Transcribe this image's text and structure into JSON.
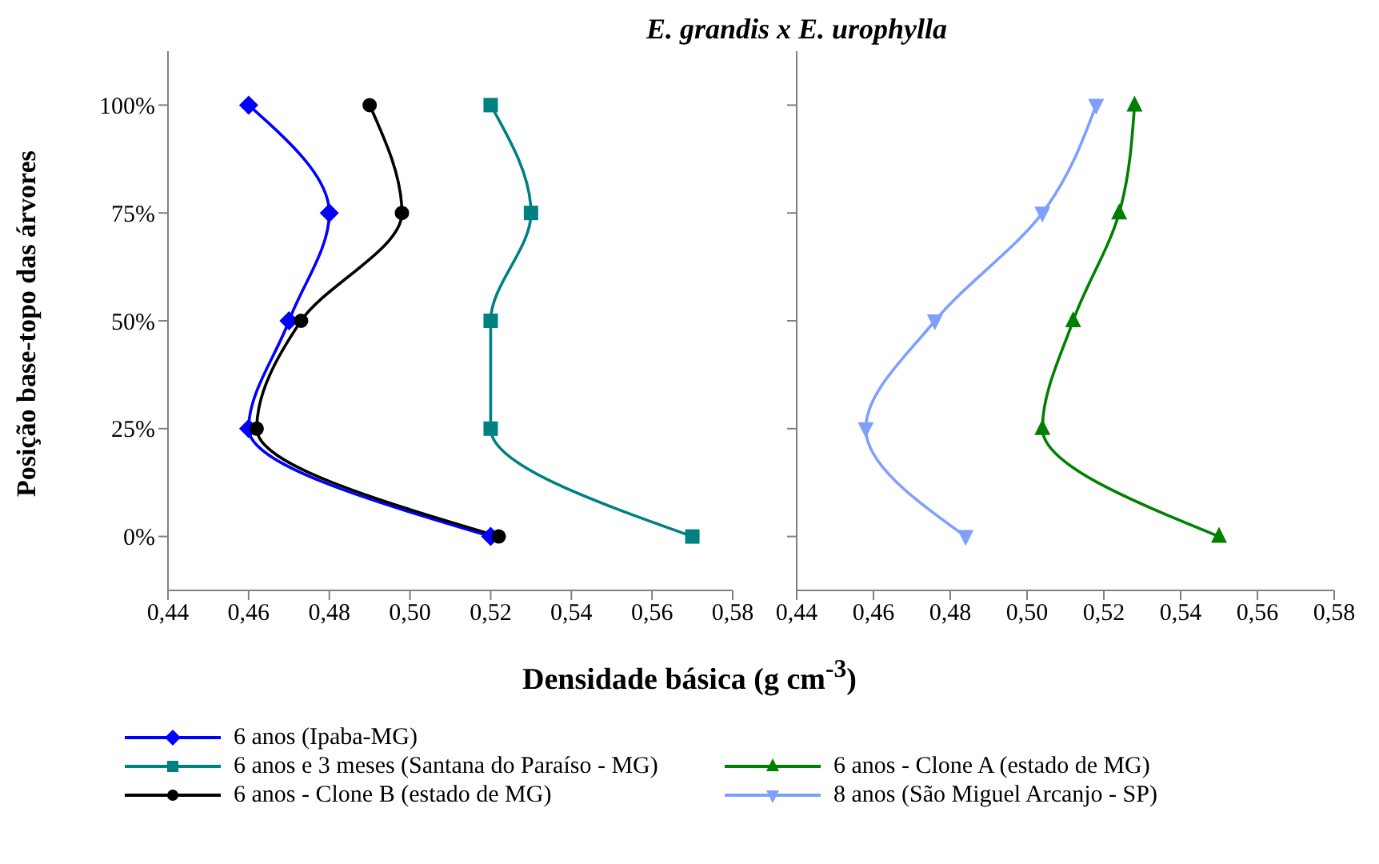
{
  "chart_data": [
    {
      "type": "line",
      "title": "E. grandis x E. urophylla",
      "xlabel": "Densidade básica (g cm$^{-3}$)",
      "ylabel": "Posição base-topo das árvores",
      "xlim": [
        0.44,
        0.58
      ],
      "xticks": [
        {
          "value": 0.44,
          "label": "0,44"
        },
        {
          "value": 0.46,
          "label": "0,46"
        },
        {
          "value": 0.48,
          "label": "0,48"
        },
        {
          "value": 0.5,
          "label": "0,50"
        },
        {
          "value": 0.52,
          "label": "0,52"
        },
        {
          "value": 0.54,
          "label": "0,54"
        },
        {
          "value": 0.56,
          "label": "0,56"
        },
        {
          "value": 0.58,
          "label": "0,58"
        }
      ],
      "ylim": [
        -12.5,
        112.5
      ],
      "yticks": [
        {
          "value": 0,
          "label": "0%"
        },
        {
          "value": 25,
          "label": "25%"
        },
        {
          "value": 50,
          "label": "50%"
        },
        {
          "value": 75,
          "label": "75%"
        },
        {
          "value": 100,
          "label": "100%"
        }
      ],
      "legend": "bottom",
      "grid": false,
      "series": [
        {
          "name": "6 anos (Ipaba-MG)",
          "color": "#0000ff",
          "marker": "diamond",
          "x": [
            0.46,
            0.48,
            0.47,
            0.46,
            0.52
          ],
          "values": [
            100,
            75,
            50,
            25,
            0
          ]
        },
        {
          "name": "6 anos e 3 meses (Santana do Paraíso - MG)",
          "color": "#008080",
          "marker": "square",
          "x": [
            0.52,
            0.53,
            0.52,
            0.52,
            0.57
          ],
          "values": [
            100,
            75,
            50,
            25,
            0
          ]
        },
        {
          "name": "6 anos - Clone B (estado de MG)",
          "color": "#000000",
          "marker": "circle",
          "x": [
            0.49,
            0.498,
            0.473,
            0.462,
            0.522
          ],
          "values": [
            100,
            75,
            50,
            25,
            0
          ]
        }
      ]
    },
    {
      "type": "line",
      "tick_labels": "x",
      "xlim": [
        0.44,
        0.58
      ],
      "xticks": [
        {
          "value": 0.44,
          "label": "0,44"
        },
        {
          "value": 0.46,
          "label": "0,46"
        },
        {
          "value": 0.48,
          "label": "0,48"
        },
        {
          "value": 0.5,
          "label": "0,50"
        },
        {
          "value": 0.52,
          "label": "0,52"
        },
        {
          "value": 0.54,
          "label": "0,54"
        },
        {
          "value": 0.56,
          "label": "0,56"
        },
        {
          "value": 0.58,
          "label": "0,58"
        }
      ],
      "ylim": [
        -12.5,
        112.5
      ],
      "yticks": [
        {
          "value": 0,
          "label": null
        },
        {
          "value": 25,
          "label": null
        },
        {
          "value": 50,
          "label": null
        },
        {
          "value": 75,
          "label": null
        },
        {
          "value": 100,
          "label": null
        }
      ],
      "legend": "bottom",
      "grid": false,
      "series": [
        {
          "name": "6 anos - Clone A (estado de MG)",
          "color": "#008000",
          "marker": "triangle",
          "x": [
            0.528,
            0.524,
            0.512,
            0.504,
            0.55
          ],
          "values": [
            100,
            75,
            50,
            25,
            0
          ]
        },
        {
          "name": "8 anos (São Miguel Arcanjo - SP)",
          "color": "#7f9fff",
          "marker": "triangle-down",
          "x": [
            0.518,
            0.504,
            0.476,
            0.458,
            0.484
          ],
          "values": [
            100,
            75,
            50,
            25,
            0
          ]
        }
      ]
    }
  ]
}
